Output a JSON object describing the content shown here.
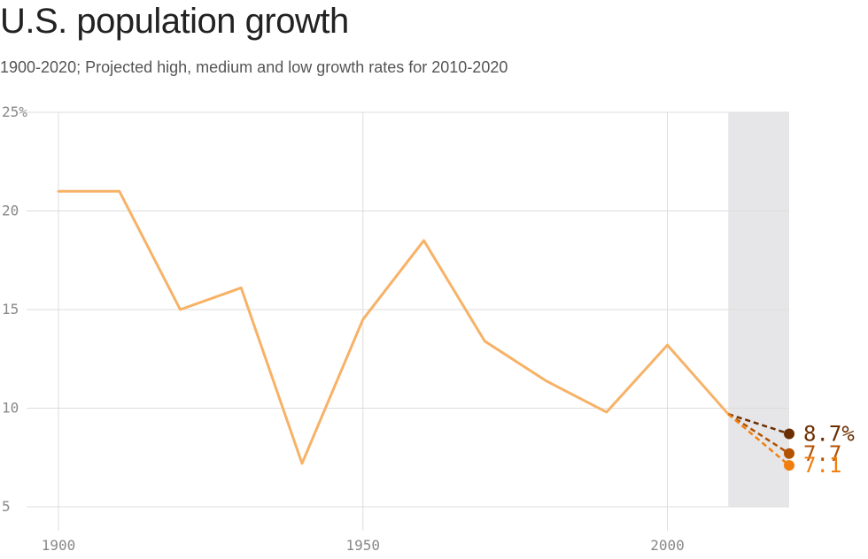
{
  "title": "U.S. population growth",
  "subtitle": "1900-2020; Projected high, medium and low growth rates for 2010-2020",
  "chart_data": {
    "type": "line",
    "x": [
      1900,
      1910,
      1920,
      1930,
      1940,
      1950,
      1960,
      1970,
      1980,
      1990,
      2000,
      2010
    ],
    "series": [
      {
        "values": [
          21.0,
          21.0,
          15.0,
          16.1,
          7.2,
          14.5,
          18.5,
          13.4,
          11.4,
          9.8,
          13.2,
          9.7
        ],
        "color": "#f7b267"
      }
    ],
    "projections": [
      {
        "x": [
          2010,
          2020
        ],
        "values": [
          9.7,
          8.7
        ],
        "color": "#6b2e00",
        "label": "8.7%"
      },
      {
        "x": [
          2010,
          2020
        ],
        "values": [
          9.7,
          7.7
        ],
        "color": "#b35200",
        "label": "7.7"
      },
      {
        "x": [
          2010,
          2020
        ],
        "values": [
          9.7,
          7.1
        ],
        "color": "#f07f10",
        "label": "7.1"
      }
    ],
    "shaded_region": {
      "x": [
        2010,
        2020
      ],
      "color": "#e6e6e8"
    },
    "xlim": [
      1900,
      2020
    ],
    "ylim": [
      5,
      25
    ],
    "x_ticks": [
      {
        "value": 1900,
        "label": "1900"
      },
      {
        "value": 1950,
        "label": "1950"
      },
      {
        "value": 2000,
        "label": "2000"
      }
    ],
    "y_ticks": [
      {
        "value": 25,
        "label": "25%"
      },
      {
        "value": 20,
        "label": "20"
      },
      {
        "value": 15,
        "label": "15"
      },
      {
        "value": 10,
        "label": "10"
      },
      {
        "value": 5,
        "label": "5"
      }
    ],
    "grid": true
  }
}
